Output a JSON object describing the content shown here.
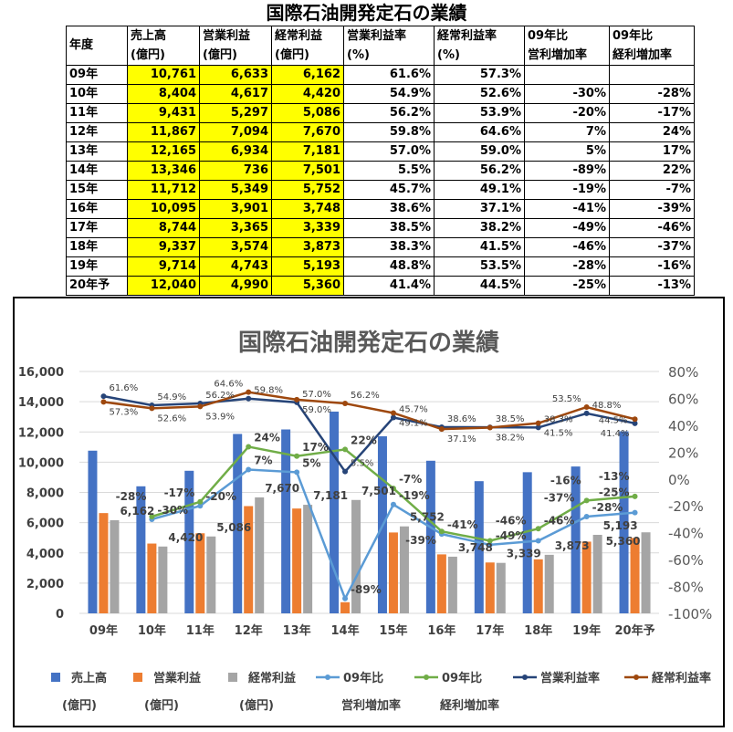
{
  "table": {
    "title": "国際石油開発定石の業績",
    "headers": [
      [
        "年度",
        ""
      ],
      [
        "売上高",
        "(億円)"
      ],
      [
        "営業利益",
        "(億円)"
      ],
      [
        "経常利益",
        "(億円)"
      ],
      [
        "営業利益率",
        "(%)"
      ],
      [
        "経常利益率",
        "(%)"
      ],
      [
        "09年比",
        "営利増加率"
      ],
      [
        "09年比",
        "経利増加率"
      ]
    ],
    "rows": [
      [
        "09年",
        "10,761",
        "6,633",
        "6,162",
        "61.6%",
        "57.3%",
        "",
        ""
      ],
      [
        "10年",
        "8,404",
        "4,617",
        "4,420",
        "54.9%",
        "52.6%",
        "-30%",
        "-28%"
      ],
      [
        "11年",
        "9,431",
        "5,297",
        "5,086",
        "56.2%",
        "53.9%",
        "-20%",
        "-17%"
      ],
      [
        "12年",
        "11,867",
        "7,094",
        "7,670",
        "59.8%",
        "64.6%",
        "7%",
        "24%"
      ],
      [
        "13年",
        "12,165",
        "6,934",
        "7,181",
        "57.0%",
        "59.0%",
        "5%",
        "17%"
      ],
      [
        "14年",
        "13,346",
        "736",
        "7,501",
        "5.5%",
        "56.2%",
        "-89%",
        "22%"
      ],
      [
        "15年",
        "11,712",
        "5,349",
        "5,752",
        "45.7%",
        "49.1%",
        "-19%",
        "-7%"
      ],
      [
        "16年",
        "10,095",
        "3,901",
        "3,748",
        "38.6%",
        "37.1%",
        "-41%",
        "-39%"
      ],
      [
        "17年",
        "8,744",
        "3,365",
        "3,339",
        "38.5%",
        "38.2%",
        "-49%",
        "-46%"
      ],
      [
        "18年",
        "9,337",
        "3,574",
        "3,873",
        "38.3%",
        "41.5%",
        "-46%",
        "-37%"
      ],
      [
        "19年",
        "9,714",
        "4,743",
        "5,193",
        "48.8%",
        "53.5%",
        "-28%",
        "-16%"
      ],
      [
        "20年予",
        "12,040",
        "4,990",
        "5,360",
        "41.4%",
        "44.5%",
        "-25%",
        "-13%"
      ]
    ]
  },
  "chart_data": {
    "type": "bar+line",
    "title": "国際石油開発定石の業績",
    "categories": [
      "09年",
      "10年",
      "11年",
      "12年",
      "13年",
      "14年",
      "15年",
      "16年",
      "17年",
      "18年",
      "19年",
      "20年予"
    ],
    "y_left": {
      "range": [
        0,
        16000
      ],
      "ticks": [
        "0",
        "2,000",
        "4,000",
        "6,000",
        "8,000",
        "10,000",
        "12,000",
        "14,000",
        "16,000"
      ]
    },
    "y_right": {
      "range": [
        -100,
        80
      ],
      "ticks": [
        "-100%",
        "-80%",
        "-60%",
        "-40%",
        "-20%",
        "0%",
        "20%",
        "40%",
        "60%",
        "80%"
      ]
    },
    "legend_position": "bottom",
    "series": [
      {
        "name": "売上高",
        "name2": "(億円)",
        "type": "bar",
        "axis": "left",
        "color": "#4472c4",
        "values": [
          10761,
          8404,
          9431,
          11867,
          12165,
          13346,
          11712,
          10095,
          8744,
          9337,
          9714,
          12040
        ]
      },
      {
        "name": "営業利益",
        "name2": "(億円)",
        "type": "bar",
        "axis": "left",
        "color": "#ed7d31",
        "values": [
          6633,
          4617,
          5297,
          7094,
          6934,
          736,
          5349,
          3901,
          3365,
          3574,
          4743,
          4990
        ]
      },
      {
        "name": "経常利益",
        "name2": "(億円)",
        "type": "bar",
        "axis": "left",
        "color": "#a5a5a5",
        "labels": true,
        "values": [
          6162,
          4420,
          5086,
          7670,
          7181,
          7501,
          5752,
          3748,
          3339,
          3873,
          5193,
          5360
        ]
      },
      {
        "name": "09年比",
        "name2": "営利増加率",
        "type": "line",
        "axis": "right",
        "color": "#5b9bd5",
        "values": [
          null,
          -30,
          -20,
          7,
          5,
          -89,
          -19,
          -41,
          -49,
          -46,
          -28,
          -25
        ]
      },
      {
        "name": "09年比",
        "name2": "経利増加率",
        "type": "line",
        "axis": "right",
        "color": "#70ad47",
        "values": [
          null,
          -28,
          -17,
          24,
          17,
          22,
          -7,
          -39,
          -46,
          -37,
          -16,
          -13
        ]
      },
      {
        "name": "営業利益率",
        "name2": "",
        "type": "line",
        "axis": "right",
        "color": "#264478",
        "values": [
          61.6,
          54.9,
          56.2,
          59.8,
          57.0,
          5.5,
          45.7,
          38.6,
          38.5,
          38.3,
          48.8,
          41.4
        ]
      },
      {
        "name": "経常利益率",
        "name2": "",
        "type": "line",
        "axis": "right",
        "color": "#9e480e",
        "values": [
          57.3,
          52.6,
          53.9,
          64.6,
          59.0,
          56.2,
          49.1,
          37.1,
          38.2,
          41.5,
          53.5,
          44.5
        ]
      }
    ]
  }
}
